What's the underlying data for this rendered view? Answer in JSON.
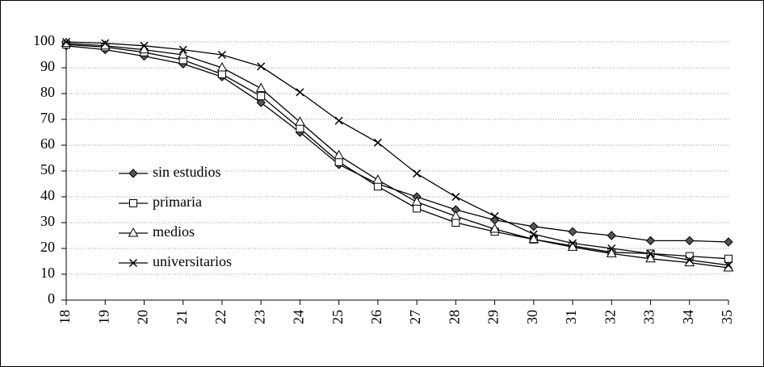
{
  "chart_data": {
    "type": "line",
    "categories": [
      "18",
      "19",
      "20",
      "21",
      "22",
      "23",
      "24",
      "25",
      "26",
      "27",
      "28",
      "29",
      "30",
      "31",
      "32",
      "33",
      "34",
      "35"
    ],
    "series": [
      {
        "name": "sin estudios",
        "color": "#000000",
        "marker": "diamond",
        "values": [
          98.5,
          97,
          94.5,
          91.5,
          86.5,
          76.5,
          65,
          52.5,
          45,
          40,
          35,
          31,
          28.5,
          26.5,
          25,
          23,
          23,
          22.5
        ]
      },
      {
        "name": "primaria",
        "color": "#000000",
        "marker": "square",
        "values": [
          99,
          98,
          96,
          93,
          87.5,
          79,
          66.5,
          53.5,
          44,
          35.5,
          30,
          26.5,
          23.5,
          21,
          18.5,
          18,
          17,
          16
        ]
      },
      {
        "name": "medios",
        "color": "#000000",
        "marker": "triangle",
        "values": [
          99.5,
          98.5,
          97,
          95,
          90,
          82,
          69,
          56,
          46.5,
          38,
          32.5,
          27.5,
          23.5,
          20.5,
          18,
          16,
          14.5,
          12.5
        ]
      },
      {
        "name": "universitarios",
        "color": "#000000",
        "marker": "x",
        "values": [
          100,
          99.5,
          98.5,
          97,
          95,
          90.5,
          80.5,
          69.5,
          61,
          49,
          40,
          32.5,
          25.5,
          22,
          20,
          18,
          15.5,
          13.5
        ]
      }
    ],
    "ylim": [
      0,
      100
    ],
    "yticks": [
      0,
      10,
      20,
      30,
      40,
      50,
      60,
      70,
      80,
      90,
      100
    ],
    "grid": true,
    "legend": "left"
  }
}
